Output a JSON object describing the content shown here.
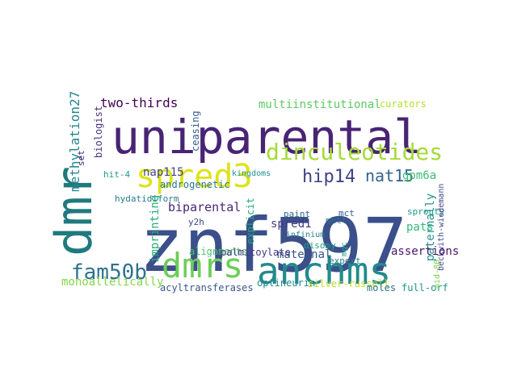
{
  "words": [
    {
      "text": "znf597",
      "color": "#3b4f8a"
    },
    {
      "text": "uniparental",
      "color": "#482475"
    },
    {
      "text": "dmr",
      "color": "#1f7a7e"
    },
    {
      "text": "anchms",
      "color": "#238a8d"
    },
    {
      "text": "dmrs",
      "color": "#6ccd59"
    },
    {
      "text": "spred3",
      "color": "#dde318"
    },
    {
      "text": "dinculeotides",
      "color": "#a5db36"
    },
    {
      "text": "fam50b",
      "color": "#2c728e"
    },
    {
      "text": "hip14",
      "color": "#404387"
    },
    {
      "text": "nat15",
      "color": "#33638d"
    },
    {
      "text": "gpm6a",
      "color": "#3cbb75"
    },
    {
      "text": "multiinstitutional",
      "color": "#5ec962"
    },
    {
      "text": "two-thirds",
      "color": "#440154"
    },
    {
      "text": "methylation27",
      "color": "#25858e"
    },
    {
      "text": "biologist",
      "color": "#46327e"
    },
    {
      "text": "nap115",
      "color": "#414487"
    },
    {
      "text": "androgenetic",
      "color": "#2a788e"
    },
    {
      "text": "ceasing",
      "color": "#365c8d"
    },
    {
      "text": "kingdoms",
      "color": "#21918c"
    },
    {
      "text": "curators",
      "color": "#b5de2b"
    },
    {
      "text": "hit-4",
      "color": "#1e9b8a"
    },
    {
      "text": "set",
      "color": "#481f70"
    },
    {
      "text": "hydatidiform",
      "color": "#287d8e"
    },
    {
      "text": "biparental",
      "color": "#482878"
    },
    {
      "text": "imprinting",
      "color": "#29af7f"
    },
    {
      "text": "y2h",
      "color": "#3e4a89"
    },
    {
      "text": "paint",
      "color": "#31688e"
    },
    {
      "text": "mhtt",
      "color": "#2d708e"
    },
    {
      "text": "spred1",
      "color": "#443983"
    },
    {
      "text": "pats",
      "color": "#35b779"
    },
    {
      "text": "sprouty",
      "color": "#1f988b"
    },
    {
      "text": "explicit",
      "color": "#22a884"
    },
    {
      "text": "infinium",
      "color": "#26828e"
    },
    {
      "text": "beckwith-wiedemann",
      "color": "#3f4788"
    },
    {
      "text": "paternally",
      "color": "#20928c"
    },
    {
      "text": "assertions",
      "color": "#481467"
    },
    {
      "text": "maternal",
      "color": "#3a548c"
    },
    {
      "text": "disomy",
      "color": "#1fa187"
    },
    {
      "text": "alignments",
      "color": "#4ac16d"
    },
    {
      "text": "palmitoylate",
      "color": "#453781"
    },
    {
      "text": "expert",
      "color": "#2c7c8e"
    },
    {
      "text": "mct",
      "color": "#355f8d"
    },
    {
      "text": "mgc",
      "color": "#1f9e89"
    },
    {
      "text": "monoallelically",
      "color": "#86d549"
    },
    {
      "text": "acyltransferases",
      "color": "#39568c"
    },
    {
      "text": "optineurin",
      "color": "#23898e"
    },
    {
      "text": "silver-russell",
      "color": "#bddf26"
    },
    {
      "text": "moles",
      "color": "#2b748e"
    },
    {
      "text": "full-orf",
      "color": "#1f968b"
    },
    {
      "text": "mid-80",
      "color": "#7ad151"
    }
  ],
  "background_color": "#ffffff"
}
